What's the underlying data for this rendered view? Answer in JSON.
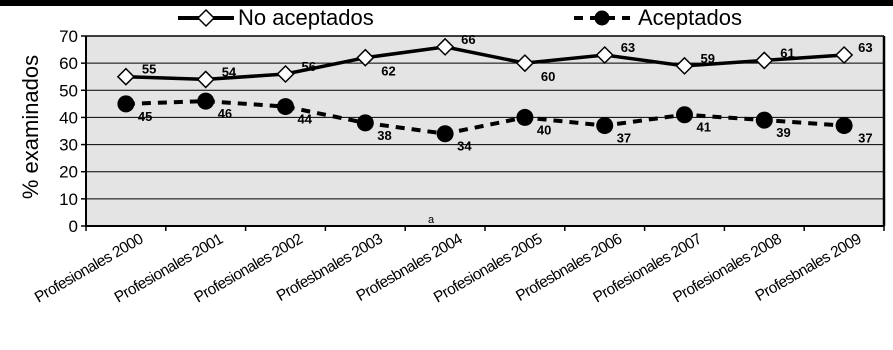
{
  "chart_data": {
    "type": "line",
    "title": "",
    "xlabel": "",
    "ylabel": "% examinados",
    "ylim": [
      0,
      70
    ],
    "yticks": [
      0,
      10,
      20,
      30,
      40,
      50,
      60,
      70
    ],
    "grid": true,
    "legend_position": "top",
    "categories": [
      "Profesionales 2000",
      "Profesionales 2001",
      "Profesionales 2002",
      "Profesbnales 2003",
      "Profesbnales 2004",
      "Profesionales 2005",
      "Profesbnales 2006",
      "Profesionales 2007",
      "Profesionales 2008",
      "Profesbnales 2009"
    ],
    "series": [
      {
        "name": "No aceptados",
        "style": "solid",
        "marker": "diamond-open",
        "color": "#000000",
        "values": [
          55,
          54,
          56,
          62,
          66,
          60,
          63,
          59,
          61,
          63
        ],
        "labels": [
          "55",
          "54",
          "56",
          "62",
          "66",
          "60",
          "63",
          "59",
          "61",
          "63"
        ]
      },
      {
        "name": "Aceptados",
        "style": "dashed",
        "marker": "circle-filled",
        "color": "#000000",
        "values": [
          45,
          46,
          44,
          38,
          34,
          40,
          37,
          41,
          39,
          37
        ],
        "labels": [
          "45",
          "46",
          "44",
          "38",
          "34",
          "40",
          "37",
          "41",
          "39",
          "37"
        ]
      }
    ],
    "annotations": [
      "a"
    ],
    "plot_background": "#e4e4e4"
  }
}
